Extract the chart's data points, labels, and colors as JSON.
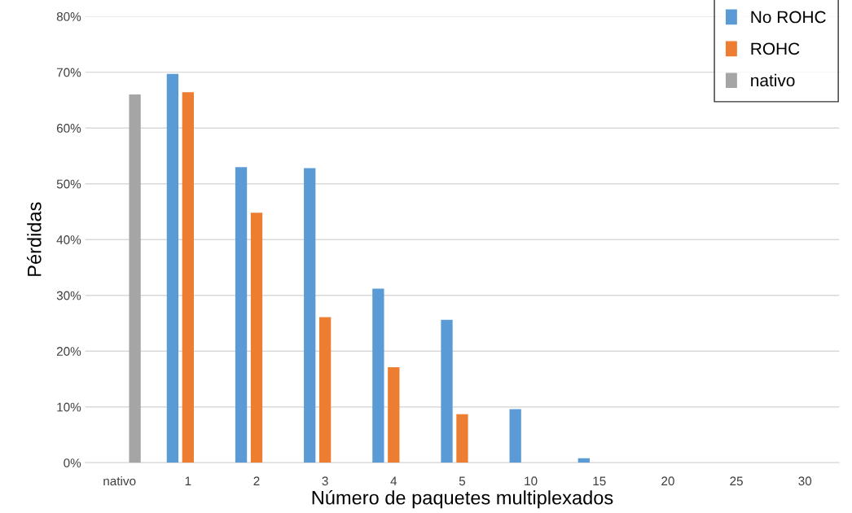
{
  "chart_data": {
    "type": "bar",
    "xlabel": "Número de paquetes multiplexados",
    "ylabel": "Pérdidas",
    "categories": [
      "nativo",
      "1",
      "2",
      "3",
      "4",
      "5",
      "10",
      "15",
      "20",
      "25",
      "30"
    ],
    "series": [
      {
        "name": "No ROHC",
        "color": "#5b9bd5",
        "values": [
          null,
          69.7,
          53.0,
          52.8,
          31.2,
          25.6,
          9.6,
          0.8,
          null,
          null,
          null
        ]
      },
      {
        "name": "ROHC",
        "color": "#ed7d31",
        "values": [
          null,
          66.4,
          44.8,
          26.1,
          17.1,
          8.7,
          null,
          null,
          null,
          null,
          null
        ]
      },
      {
        "name": "nativo",
        "color": "#a5a5a5",
        "values": [
          66.0,
          null,
          null,
          null,
          null,
          null,
          null,
          null,
          null,
          null,
          null
        ]
      }
    ],
    "ylim": [
      0,
      80
    ],
    "yticks": [
      {
        "value": 0,
        "label": "0%"
      },
      {
        "value": 10,
        "label": "10%"
      },
      {
        "value": 20,
        "label": "20%"
      },
      {
        "value": 30,
        "label": "30%"
      },
      {
        "value": 40,
        "label": "40%"
      },
      {
        "value": 50,
        "label": "50%"
      },
      {
        "value": 60,
        "label": "60%"
      },
      {
        "value": 70,
        "label": "70%"
      },
      {
        "value": 80,
        "label": "80%"
      }
    ],
    "grid": "y",
    "legend": "top right"
  }
}
